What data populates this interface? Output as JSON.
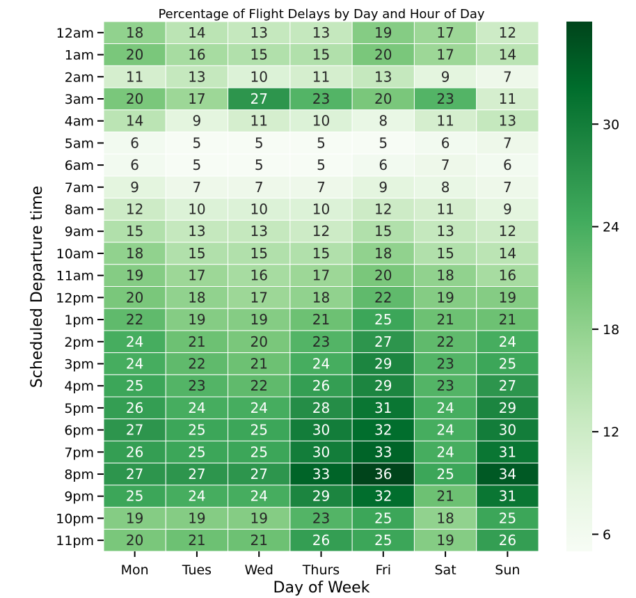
{
  "chart_data": {
    "type": "heatmap",
    "title": "Percentage of Flight Delays by Day and Hour of Day",
    "xlabel": "Day of Week",
    "ylabel": "Scheduled Departure time",
    "x_categories": [
      "Mon",
      "Tues",
      "Wed",
      "Thurs",
      "Fri",
      "Sat",
      "Sun"
    ],
    "y_categories": [
      "12am",
      "1am",
      "2am",
      "3am",
      "4am",
      "5am",
      "6am",
      "7am",
      "8am",
      "9am",
      "10am",
      "11am",
      "12pm",
      "1pm",
      "2pm",
      "3pm",
      "4pm",
      "5pm",
      "6pm",
      "7pm",
      "8pm",
      "9pm",
      "10pm",
      "11pm"
    ],
    "values": [
      [
        18,
        14,
        13,
        13,
        19,
        17,
        12
      ],
      [
        20,
        16,
        15,
        15,
        20,
        17,
        14
      ],
      [
        11,
        13,
        10,
        11,
        13,
        9,
        7
      ],
      [
        20,
        17,
        27,
        23,
        20,
        23,
        11
      ],
      [
        14,
        9,
        11,
        10,
        8,
        11,
        13
      ],
      [
        6,
        5,
        5,
        5,
        5,
        6,
        7
      ],
      [
        6,
        5,
        5,
        5,
        6,
        7,
        6
      ],
      [
        9,
        7,
        7,
        7,
        9,
        8,
        7
      ],
      [
        12,
        10,
        10,
        10,
        12,
        11,
        9
      ],
      [
        15,
        13,
        13,
        12,
        15,
        13,
        12
      ],
      [
        18,
        15,
        15,
        15,
        18,
        15,
        14
      ],
      [
        19,
        17,
        16,
        17,
        20,
        18,
        16
      ],
      [
        20,
        18,
        17,
        18,
        22,
        19,
        19
      ],
      [
        22,
        19,
        19,
        21,
        25,
        21,
        21
      ],
      [
        24,
        21,
        20,
        23,
        27,
        22,
        24
      ],
      [
        24,
        22,
        21,
        24,
        29,
        23,
        25
      ],
      [
        25,
        23,
        22,
        26,
        29,
        23,
        27
      ],
      [
        26,
        24,
        24,
        28,
        31,
        24,
        29
      ],
      [
        27,
        25,
        25,
        30,
        32,
        24,
        30
      ],
      [
        26,
        25,
        25,
        30,
        33,
        24,
        31
      ],
      [
        27,
        27,
        27,
        33,
        36,
        25,
        34
      ],
      [
        25,
        24,
        24,
        29,
        32,
        21,
        31
      ],
      [
        19,
        19,
        19,
        23,
        25,
        18,
        25
      ],
      [
        20,
        21,
        21,
        26,
        25,
        19,
        26
      ]
    ],
    "colorbar": {
      "ticks": [
        6,
        12,
        18,
        24,
        30
      ],
      "range": [
        5,
        36
      ],
      "colormap": "Greens"
    }
  }
}
